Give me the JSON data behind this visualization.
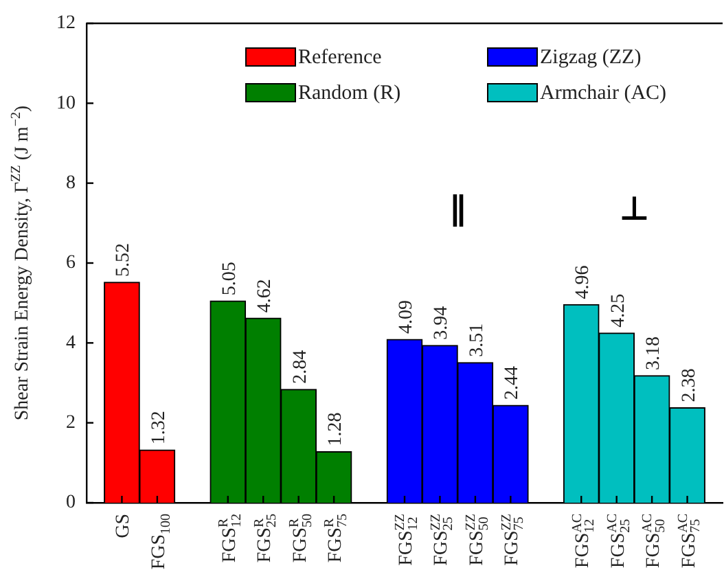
{
  "chart_data": {
    "type": "bar",
    "ylabel": "Shear Strain Energy Density, Γ$^{ZZ}$ (J m$^{−2}$)",
    "categories": [
      null,
      "GS",
      "FGS$_{100}$",
      null,
      "FGS$^{R}$$_{12}$",
      "FGS$^{R}$$_{25}$",
      "FGS$^{R}$$_{50}$",
      "FGS$^{R}$$_{75}$",
      null,
      "FGS$^{ZZ}$$_{12}$",
      "FGS$^{ZZ}$$_{25}$",
      "FGS$^{ZZ}$$_{50}$",
      "FGS$^{ZZ}$$_{75}$",
      null,
      "FGS$^{AC}$$_{12}$",
      "FGS$^{AC}$$_{25}$",
      "FGS$^{AC}$$_{50}$",
      "FGS$^{AC}$$_{75}$",
      null
    ],
    "series": [
      {
        "name": "Reference",
        "color": "#ff0000",
        "values": [
          null,
          5.52,
          1.32,
          null,
          null,
          null,
          null,
          null,
          null,
          null,
          null,
          null,
          null,
          null,
          null,
          null,
          null,
          null,
          null
        ]
      },
      {
        "name": "Random (R)",
        "color": "#007f00",
        "values": [
          null,
          null,
          null,
          null,
          5.05,
          4.62,
          2.84,
          1.28,
          null,
          null,
          null,
          null,
          null,
          null,
          null,
          null,
          null,
          null,
          null
        ]
      },
      {
        "name": "Zigzag (ZZ)",
        "color": "#0000ff",
        "values": [
          null,
          null,
          null,
          null,
          null,
          null,
          null,
          null,
          null,
          4.09,
          3.94,
          3.51,
          2.44,
          null,
          null,
          null,
          null,
          null,
          null
        ]
      },
      {
        "name": "Armchair (AC)",
        "color": "#00bfbf",
        "values": [
          null,
          null,
          null,
          null,
          null,
          null,
          null,
          null,
          null,
          null,
          null,
          null,
          null,
          null,
          4.96,
          4.25,
          3.18,
          2.38,
          null
        ]
      }
    ],
    "ylim": [
      0,
      12
    ],
    "yticks": [
      0,
      2,
      4,
      6,
      8,
      10,
      12
    ],
    "grid": false,
    "legend": "top",
    "data_labels": true,
    "annotations": [
      "∥",
      "⊥"
    ]
  }
}
